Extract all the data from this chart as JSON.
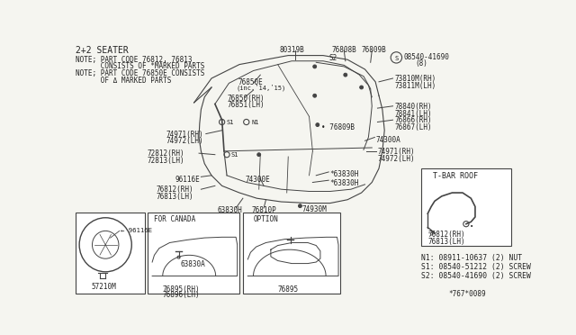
{
  "bg_color": "#f5f5f0",
  "line_color": "#444444",
  "text_color": "#222222",
  "title": "2+2 SEATER",
  "notes": [
    "NOTE; PART CODE 76812, 76813",
    "      CONSISTS OF *MARKED PARTS",
    "NOTE; PART CODE 76850E CONSISTS",
    "      OF Δ MARKED PARTS"
  ],
  "bottom_notes": [
    "N1: 08911-10637 (2) NUT",
    "S1: 08540-51212 (2) SCREW",
    "S2: 08540-41690 (2) SCREW"
  ],
  "footer": "*767*0089"
}
